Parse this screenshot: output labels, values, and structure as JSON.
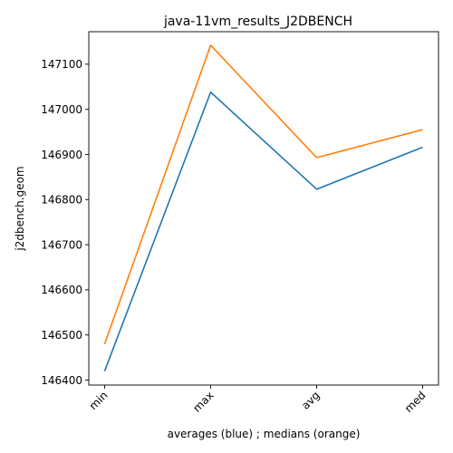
{
  "chart_data": {
    "type": "line",
    "title": "java-11vm_results_J2DBENCH",
    "xlabel": "averages (blue) ; medians (orange)",
    "ylabel": "j2dbench.geom",
    "categories": [
      "min",
      "max",
      "avg",
      "med"
    ],
    "series": [
      {
        "values": [
          146420,
          147038,
          146823,
          146916
        ],
        "color": "#1f77b4"
      },
      {
        "values": [
          146480,
          147142,
          146893,
          146955
        ],
        "color": "#ff7f0e"
      }
    ],
    "ylim": [
      146389,
      147172
    ],
    "yticks": [
      146400,
      146500,
      146600,
      146700,
      146800,
      146900,
      147000,
      147100
    ],
    "grid": false,
    "legend": "none"
  }
}
